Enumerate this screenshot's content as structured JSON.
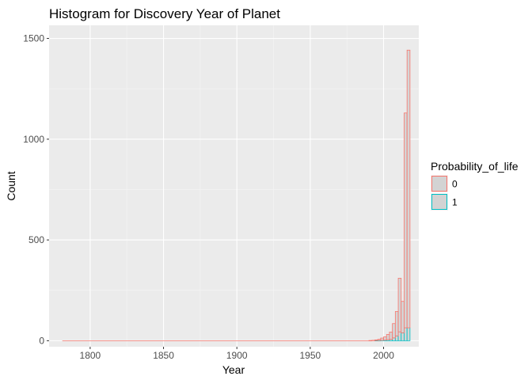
{
  "chart_data": {
    "type": "histogram",
    "title": "Histogram for Discovery Year of Planet",
    "xlabel": "Year",
    "ylabel": "Count",
    "xlim": [
      1772,
      2024
    ],
    "ylim": [
      -30,
      1565
    ],
    "x_ticks": [
      1800,
      1850,
      1900,
      1950,
      2000
    ],
    "y_ticks": [
      0,
      500,
      1000,
      1500
    ],
    "grid": true,
    "position": "stack",
    "bin_width": 2,
    "legend": {
      "title": "Probability_of_life",
      "placement": "right",
      "entries": [
        {
          "label": "0",
          "color": "#F8766D"
        },
        {
          "label": "1",
          "color": "#00BFC4"
        }
      ]
    },
    "colors": {
      "panel_bg": "#EBEBEB",
      "grid_major": "#FFFFFF",
      "grid_minor": "#F5F5F5",
      "bar_fill": "#D3D3D3",
      "bar_fill_opacity": 0.9
    },
    "baseline_x": [
      1781,
      1990
    ],
    "series": [
      {
        "name": "0",
        "color": "#F8766D",
        "bins": [
          {
            "x": 1991,
            "value": 1
          },
          {
            "x": 1993,
            "value": 2
          },
          {
            "x": 1995,
            "value": 3
          },
          {
            "x": 1997,
            "value": 6
          },
          {
            "x": 1999,
            "value": 11
          },
          {
            "x": 2001,
            "value": 16
          },
          {
            "x": 2003,
            "value": 26
          },
          {
            "x": 2005,
            "value": 36
          },
          {
            "x": 2007,
            "value": 71
          },
          {
            "x": 2009,
            "value": 121
          },
          {
            "x": 2011,
            "value": 266
          },
          {
            "x": 2013,
            "value": 156
          },
          {
            "x": 2015,
            "value": 1066
          },
          {
            "x": 2017,
            "value": 1378
          }
        ]
      },
      {
        "name": "1",
        "color": "#00BFC4",
        "bins": [
          {
            "x": 1995,
            "value": 1
          },
          {
            "x": 1997,
            "value": 1
          },
          {
            "x": 1999,
            "value": 2
          },
          {
            "x": 2001,
            "value": 3
          },
          {
            "x": 2003,
            "value": 5
          },
          {
            "x": 2005,
            "value": 7
          },
          {
            "x": 2007,
            "value": 14
          },
          {
            "x": 2009,
            "value": 24
          },
          {
            "x": 2011,
            "value": 44
          },
          {
            "x": 2013,
            "value": 39
          },
          {
            "x": 2015,
            "value": 64
          },
          {
            "x": 2017,
            "value": 64
          }
        ]
      }
    ]
  }
}
